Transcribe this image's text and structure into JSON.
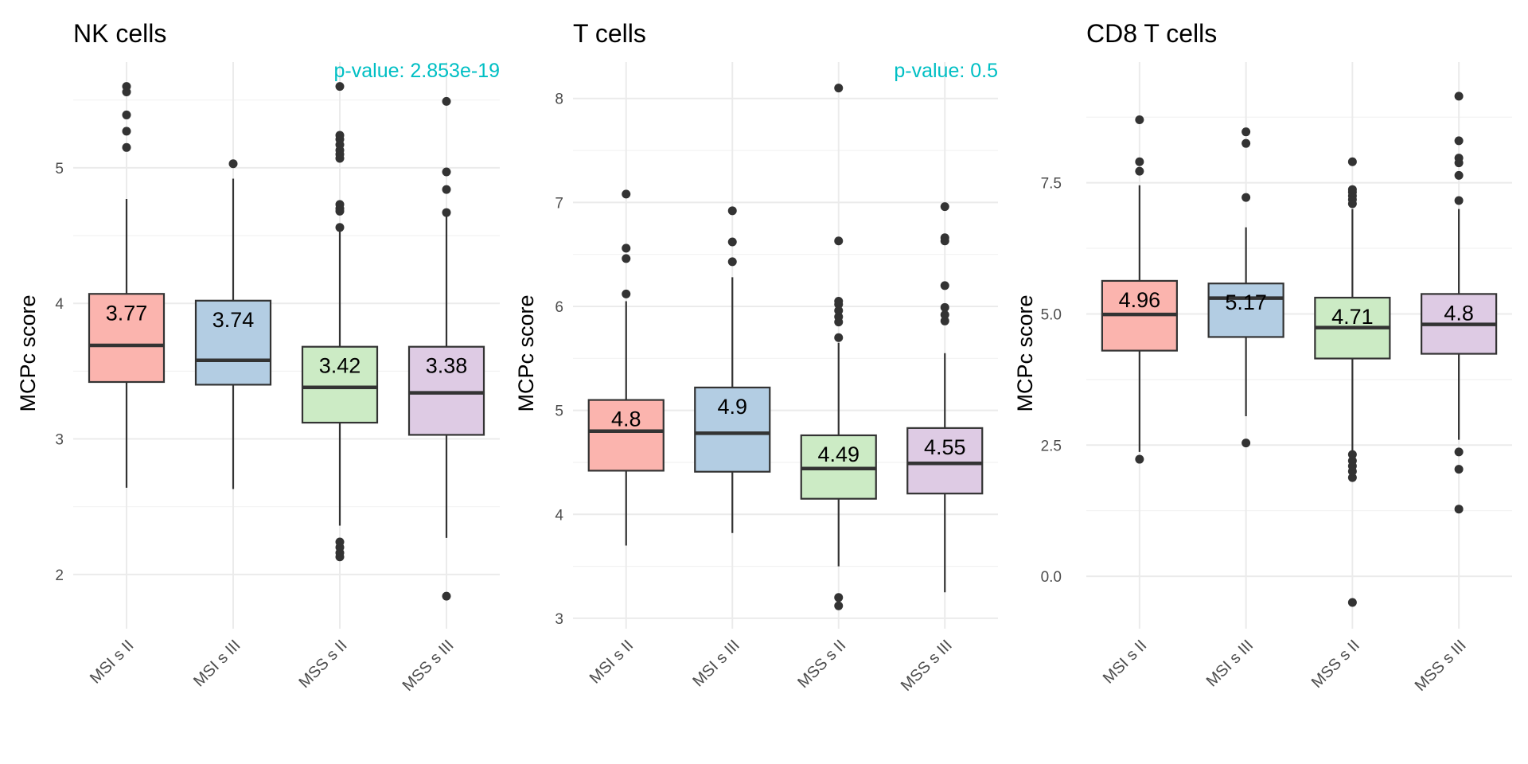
{
  "pvalue_color": "#00BFC4",
  "chart_data": [
    {
      "type": "boxplot",
      "title": "NK cells",
      "ylabel": "MCPc score",
      "xlabel": "",
      "annotation": "p-value: 2.853e-19",
      "ylim": [
        1.6,
        5.78
      ],
      "yticks": [
        2,
        3,
        4,
        5
      ],
      "ytick_labels": [
        "2",
        "3",
        "4",
        "5"
      ],
      "grid": true,
      "categories": [
        "MSI s II",
        "MSI s III",
        "MSS s II",
        "MSS s III"
      ],
      "fill_colors": [
        "#FBB4AE",
        "#B3CDE3",
        "#CCEBC5",
        "#DECBE4"
      ],
      "boxes": [
        {
          "category": "MSI s II",
          "q1": 3.42,
          "median": 3.69,
          "q3": 4.07,
          "whisker_low": 2.64,
          "whisker_high": 4.77,
          "label": "3.77",
          "outliers": [
            5.15,
            5.27,
            5.39,
            5.56,
            5.6
          ]
        },
        {
          "category": "MSI s III",
          "q1": 3.4,
          "median": 3.58,
          "q3": 4.02,
          "whisker_low": 2.63,
          "whisker_high": 4.92,
          "label": "3.74",
          "outliers": [
            5.03
          ]
        },
        {
          "category": "MSS s II",
          "q1": 3.12,
          "median": 3.38,
          "q3": 3.68,
          "whisker_low": 2.36,
          "whisker_high": 4.53,
          "label": "3.42",
          "outliers": [
            2.13,
            2.16,
            2.2,
            2.24,
            4.56,
            4.68,
            4.7,
            4.73,
            5.07,
            5.1,
            5.13,
            5.17,
            5.21,
            5.24,
            5.6
          ]
        },
        {
          "category": "MSS s III",
          "q1": 3.03,
          "median": 3.34,
          "q3": 3.68,
          "whisker_low": 2.27,
          "whisker_high": 4.66,
          "label": "3.38",
          "outliers": [
            1.84,
            4.67,
            4.84,
            4.97,
            5.49
          ]
        }
      ]
    },
    {
      "type": "boxplot",
      "title": "T cells",
      "ylabel": "MCPc score",
      "xlabel": "",
      "annotation": "p-value:  0.5",
      "ylim": [
        2.9,
        8.35
      ],
      "yticks": [
        3,
        4,
        5,
        6,
        7,
        8
      ],
      "ytick_labels": [
        "3",
        "4",
        "5",
        "6",
        "7",
        "8"
      ],
      "grid": true,
      "categories": [
        "MSI s II",
        "MSI s III",
        "MSS s II",
        "MSS s III"
      ],
      "fill_colors": [
        "#FBB4AE",
        "#B3CDE3",
        "#CCEBC5",
        "#DECBE4"
      ],
      "boxes": [
        {
          "category": "MSI s II",
          "q1": 4.42,
          "median": 4.8,
          "q3": 5.1,
          "whisker_low": 3.7,
          "whisker_high": 6.05,
          "label": "4.8",
          "outliers": [
            6.12,
            6.46,
            6.56,
            7.08
          ]
        },
        {
          "category": "MSI s III",
          "q1": 4.41,
          "median": 4.78,
          "q3": 5.22,
          "whisker_low": 3.82,
          "whisker_high": 6.28,
          "label": "4.9",
          "outliers": [
            6.43,
            6.62,
            6.92
          ]
        },
        {
          "category": "MSS s II",
          "q1": 4.15,
          "median": 4.44,
          "q3": 4.76,
          "whisker_low": 3.5,
          "whisker_high": 5.65,
          "label": "4.49",
          "outliers": [
            3.12,
            3.2,
            5.7,
            5.85,
            5.9,
            5.96,
            6.02,
            6.05,
            6.63,
            8.1
          ]
        },
        {
          "category": "MSS s III",
          "q1": 4.2,
          "median": 4.49,
          "q3": 4.83,
          "whisker_low": 3.25,
          "whisker_high": 5.55,
          "label": "4.55",
          "outliers": [
            5.86,
            5.92,
            5.99,
            6.2,
            6.63,
            6.66,
            6.96
          ]
        }
      ]
    },
    {
      "type": "boxplot",
      "title": "CD8 T cells",
      "ylabel": "MCPc score",
      "xlabel": "",
      "annotation": "",
      "ylim": [
        -1.0,
        9.8
      ],
      "yticks": [
        0,
        2.5,
        5.0,
        7.5
      ],
      "ytick_labels": [
        "0.0",
        "2.5",
        "5.0",
        "7.5"
      ],
      "grid": true,
      "categories": [
        "MSI s II",
        "MSI s III",
        "MSS s II",
        "MSS s III"
      ],
      "fill_colors": [
        "#FBB4AE",
        "#B3CDE3",
        "#CCEBC5",
        "#DECBE4"
      ],
      "boxes": [
        {
          "category": "MSI s II",
          "q1": 4.3,
          "median": 4.99,
          "q3": 5.63,
          "whisker_low": 2.37,
          "whisker_high": 7.45,
          "label": "4.96",
          "outliers": [
            2.23,
            7.72,
            7.9,
            8.7
          ]
        },
        {
          "category": "MSI s III",
          "q1": 4.56,
          "median": 5.3,
          "q3": 5.58,
          "whisker_low": 3.05,
          "whisker_high": 6.65,
          "label": "5.17",
          "outliers": [
            2.54,
            7.22,
            8.25,
            8.47
          ]
        },
        {
          "category": "MSS s II",
          "q1": 4.15,
          "median": 4.74,
          "q3": 5.31,
          "whisker_low": 2.3,
          "whisker_high": 7.0,
          "label": "4.71",
          "outliers": [
            -0.5,
            1.88,
            2.0,
            2.1,
            2.2,
            2.32,
            7.1,
            7.18,
            7.25,
            7.32,
            7.37,
            7.9
          ]
        },
        {
          "category": "MSS s III",
          "q1": 4.24,
          "median": 4.8,
          "q3": 5.38,
          "whisker_low": 2.6,
          "whisker_high": 7.0,
          "label": "4.8",
          "outliers": [
            1.28,
            2.04,
            2.37,
            7.16,
            7.64,
            7.88,
            7.97,
            8.3,
            9.15
          ]
        }
      ]
    }
  ]
}
